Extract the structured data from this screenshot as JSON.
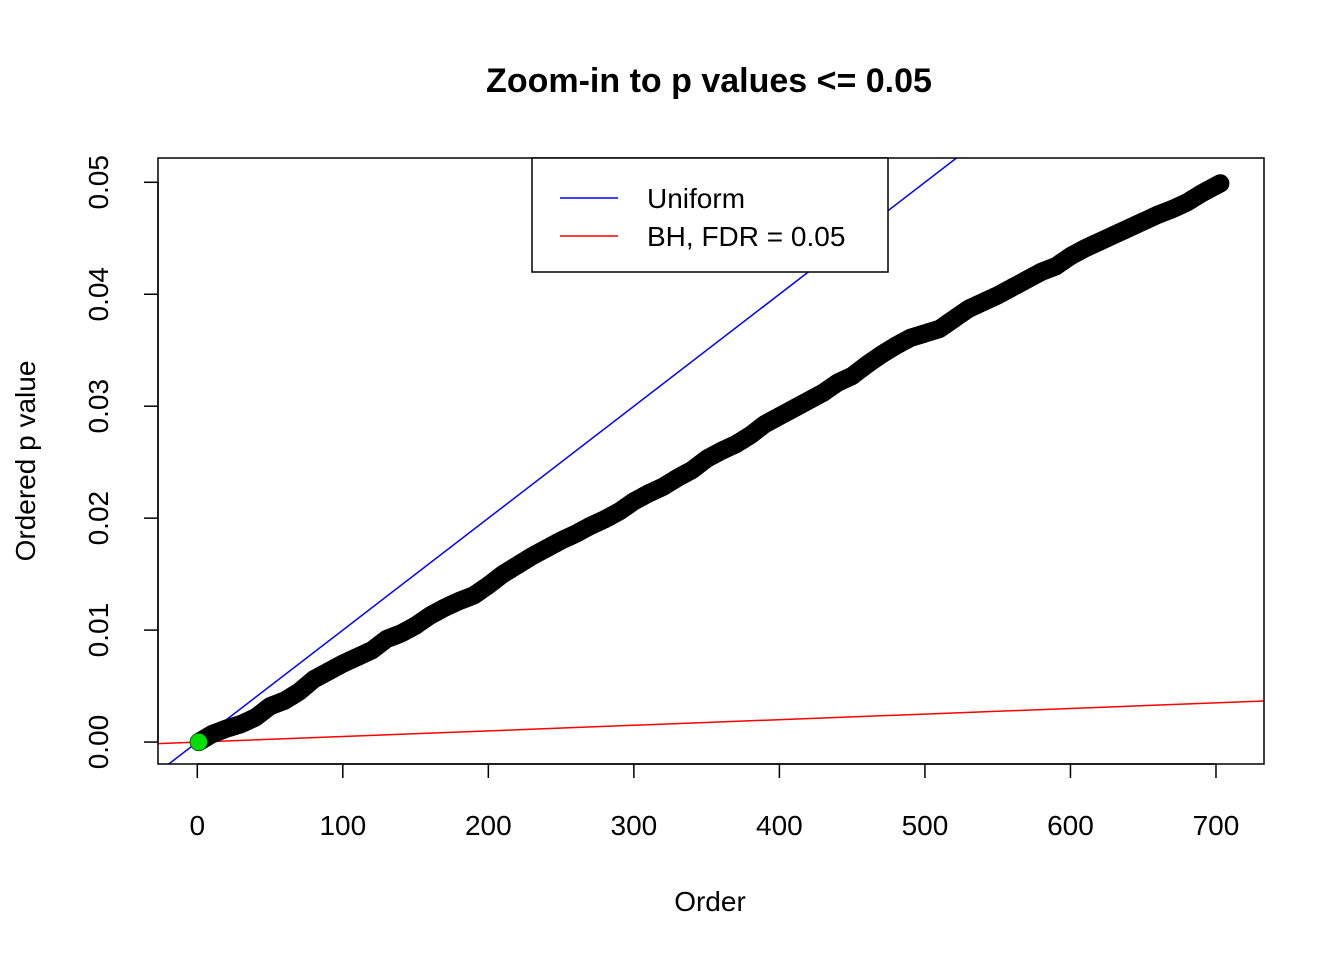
{
  "chart_data": {
    "type": "scatter",
    "title": "Zoom-in to p values <= 0.05",
    "xlabel": "Order",
    "ylabel": "Ordered p value",
    "xlim": [
      -27,
      733
    ],
    "ylim": [
      -0.00196,
      0.05217
    ],
    "x_ticks": [
      0,
      100,
      200,
      300,
      400,
      500,
      600,
      700
    ],
    "y_ticks": [
      0.0,
      0.01,
      0.02,
      0.03,
      0.04,
      0.05
    ],
    "x_tick_labels": [
      "0",
      "100",
      "200",
      "300",
      "400",
      "500",
      "600",
      "700"
    ],
    "y_tick_labels": [
      "0.00",
      "0.01",
      "0.02",
      "0.03",
      "0.04",
      "0.05"
    ],
    "grid": false,
    "legend_position": "top-center",
    "legend": [
      {
        "name": "Uniform",
        "color": "#0000FF"
      },
      {
        "name": "BH, FDR = 0.05",
        "color": "#FF0000"
      }
    ],
    "reference_lines": [
      {
        "name": "Uniform",
        "color": "#0000FF",
        "slope": 0.0001,
        "intercept": 0
      },
      {
        "name": "BH, FDR = 0.05",
        "color": "#FF0000",
        "slope": 5e-06,
        "intercept": 0
      }
    ],
    "series": [
      {
        "marker_color": "#000000",
        "n_points": 703,
        "x": [
          1,
          10,
          20,
          30,
          40,
          50,
          60,
          70,
          80,
          90,
          100,
          110,
          120,
          130,
          140,
          150,
          160,
          170,
          180,
          190,
          200,
          210,
          220,
          230,
          240,
          250,
          260,
          270,
          280,
          290,
          300,
          310,
          320,
          330,
          340,
          350,
          360,
          370,
          380,
          390,
          400,
          410,
          420,
          430,
          440,
          450,
          460,
          470,
          480,
          490,
          500,
          510,
          520,
          530,
          540,
          550,
          560,
          570,
          580,
          590,
          600,
          610,
          620,
          630,
          640,
          650,
          660,
          670,
          680,
          690,
          700,
          703
        ],
        "y": [
          0.0,
          0.0007,
          0.0012,
          0.0016,
          0.0022,
          0.0032,
          0.0037,
          0.0045,
          0.0056,
          0.0063,
          0.007,
          0.0076,
          0.0082,
          0.0092,
          0.0097,
          0.0104,
          0.0113,
          0.012,
          0.0126,
          0.0131,
          0.014,
          0.015,
          0.0158,
          0.0166,
          0.0173,
          0.018,
          0.0186,
          0.0193,
          0.0199,
          0.0206,
          0.0215,
          0.0222,
          0.0228,
          0.0236,
          0.0243,
          0.0253,
          0.026,
          0.0266,
          0.0274,
          0.0284,
          0.0291,
          0.0298,
          0.0305,
          0.0312,
          0.0321,
          0.0327,
          0.0337,
          0.0346,
          0.0354,
          0.0361,
          0.0365,
          0.0369,
          0.0378,
          0.0387,
          0.0393,
          0.0399,
          0.0406,
          0.0413,
          0.042,
          0.0425,
          0.0434,
          0.0441,
          0.0447,
          0.0453,
          0.0459,
          0.0465,
          0.0471,
          0.0476,
          0.0482,
          0.049,
          0.0497,
          0.0499
        ]
      },
      {
        "marker_color": "#00DD00",
        "x": [
          1
        ],
        "y": [
          0.0
        ]
      }
    ]
  }
}
